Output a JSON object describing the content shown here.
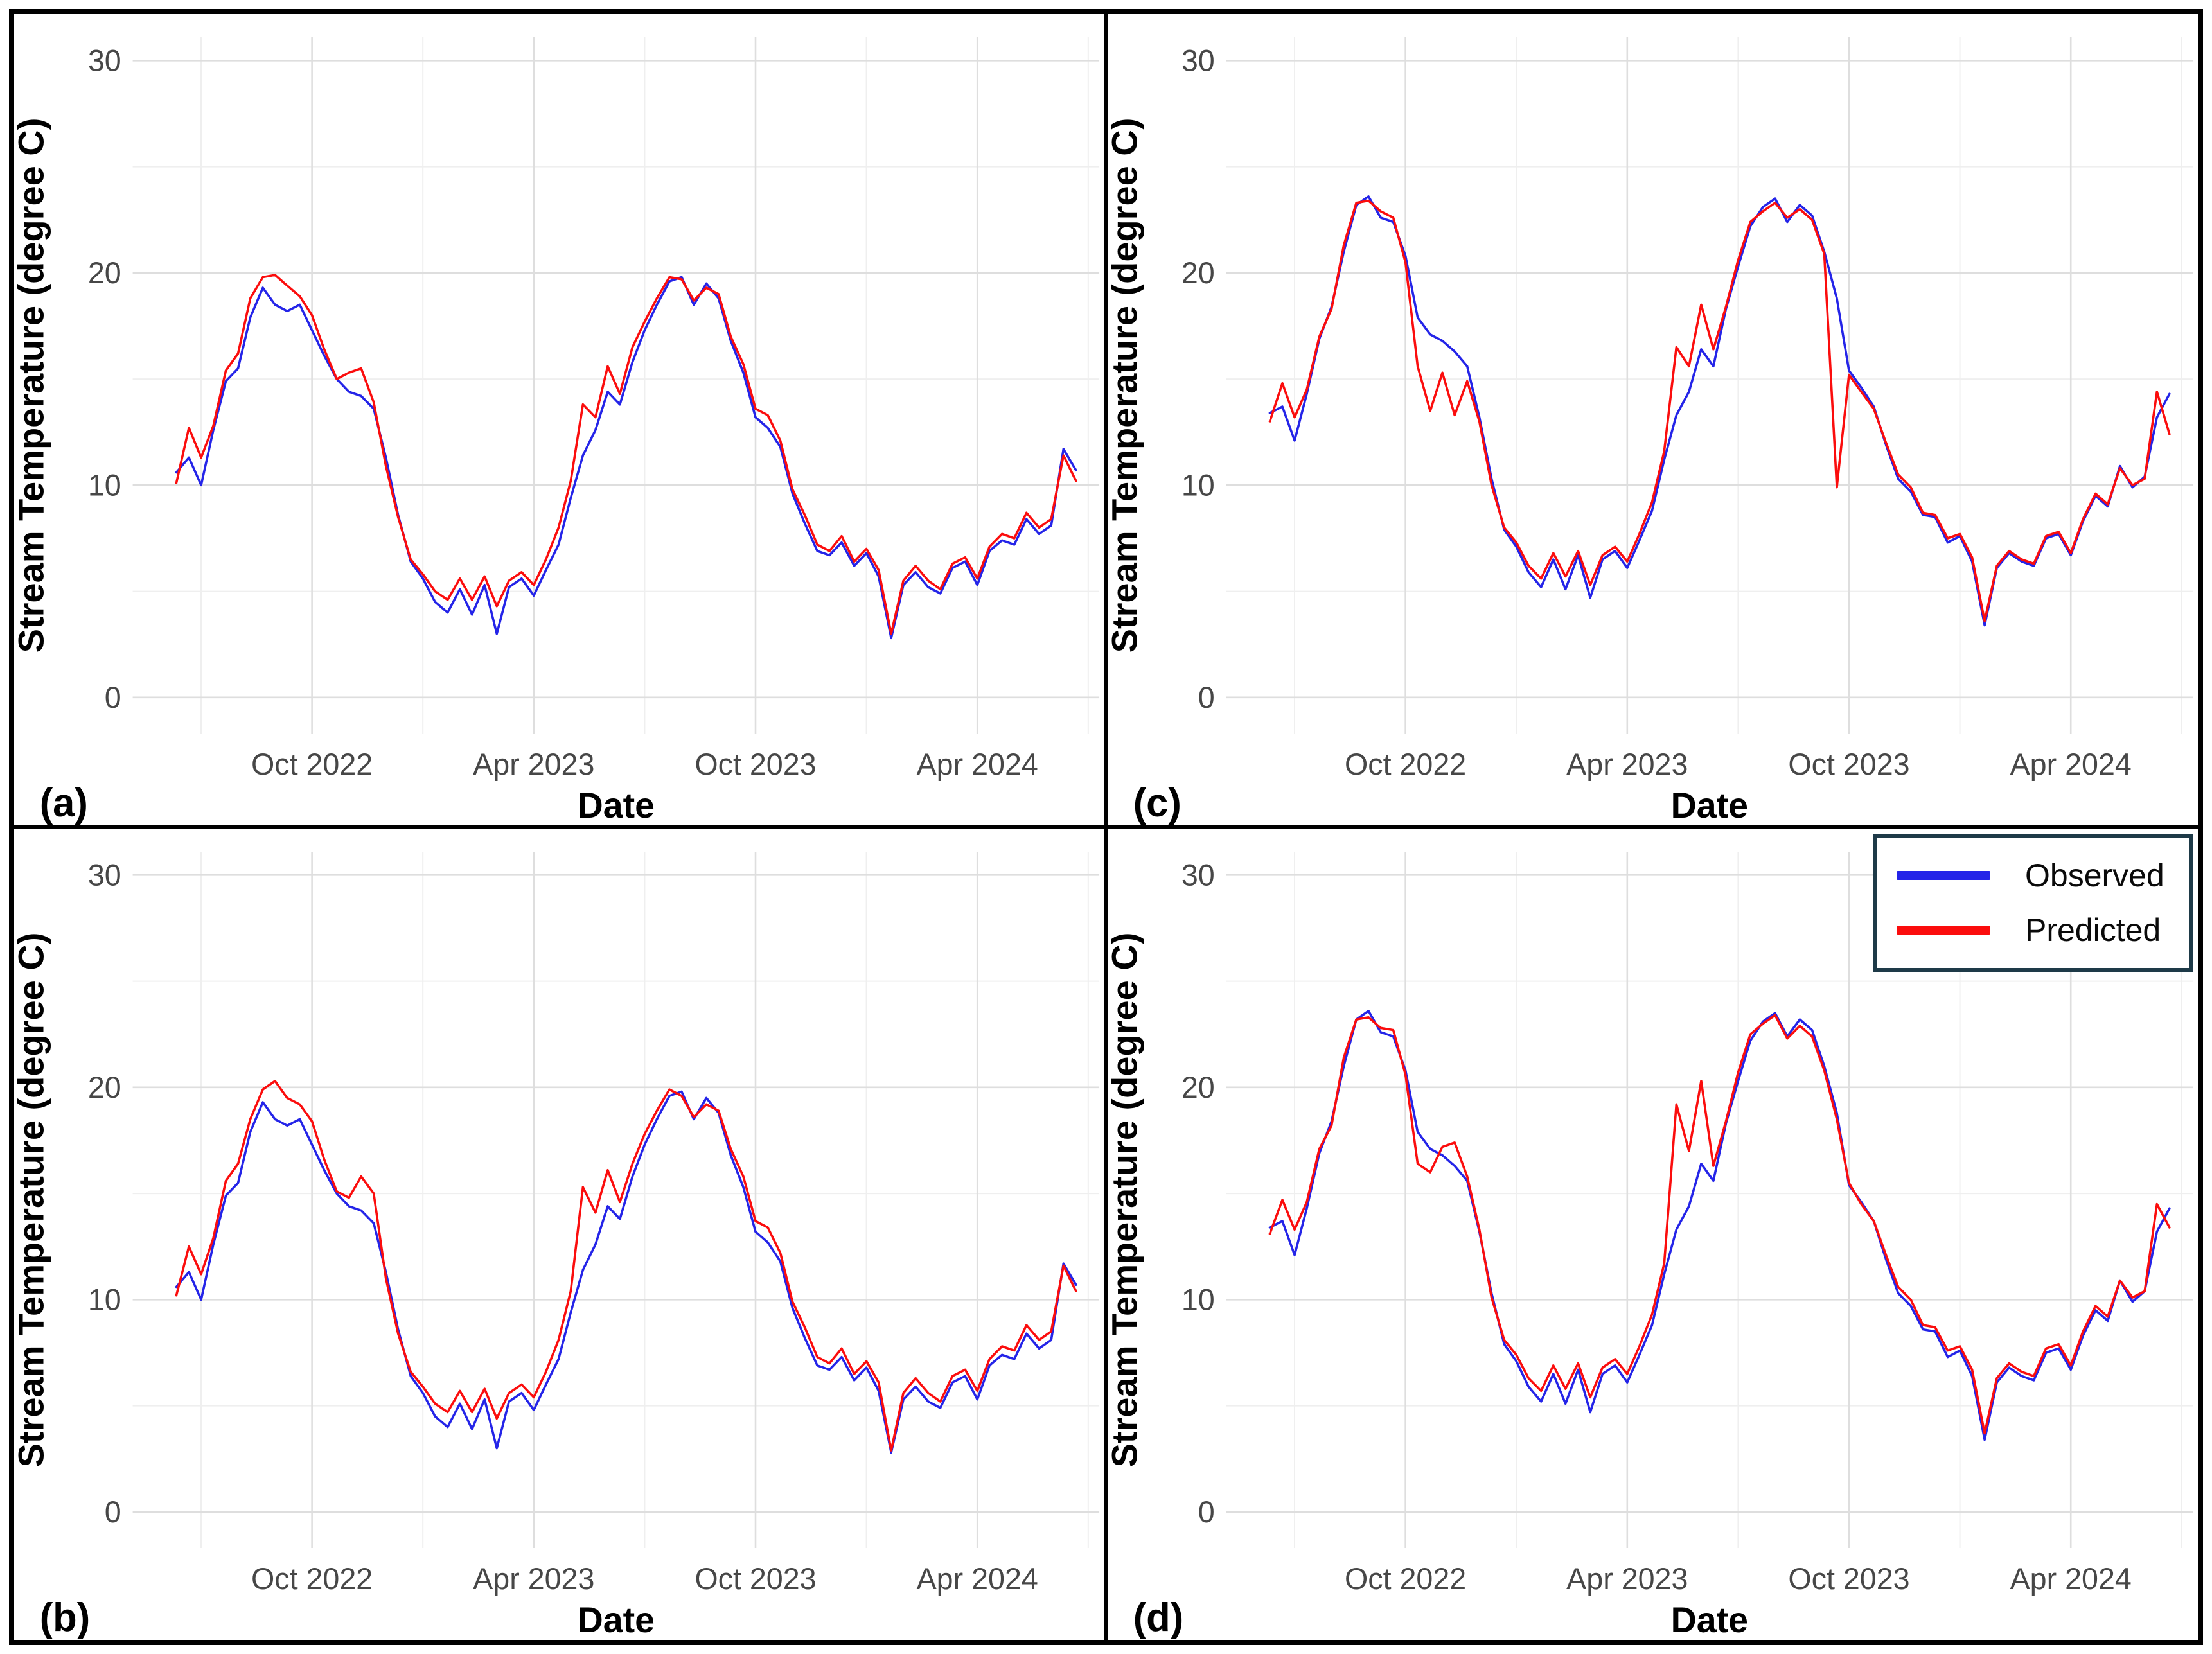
{
  "chart_data": {
    "type": "line",
    "description": "2x2 grid of observed vs predicted daily stream temperature time series, June 2022 - June 2024",
    "xlabel": "Date",
    "ylabel": "Stream Temperature (degree C)",
    "legend": [
      "Observed",
      "Predicted"
    ],
    "legend_position": "top-right of panel (d)",
    "grid": "on",
    "x_unit": "months since 2022-06-01",
    "xlim": [
      -0.85,
      25.3
    ],
    "ylim": [
      -1.7,
      31.1
    ],
    "y_ticks": [
      0,
      10,
      20,
      30
    ],
    "y_minor_gridlines": [
      5,
      15,
      25
    ],
    "x_tick_positions": [
      4,
      10,
      16,
      22
    ],
    "x_tick_labels": [
      "Oct 2022",
      "Apr 2023",
      "Oct 2023",
      "Apr 2024"
    ],
    "x_minor_gridlines": [
      1,
      7,
      13,
      19,
      25
    ],
    "colors": {
      "observed": "#2424e8",
      "predicted": "#fb0d0d",
      "grid_major": "#dedede",
      "grid_minor": "#efefef",
      "tick_label": "#474747",
      "axis_title": "#000000",
      "panel_letter": "#000000",
      "legend_border": "#1e3a48",
      "figure_border": "#000000"
    },
    "x": [
      0.33,
      0.67,
      1.0,
      1.33,
      1.67,
      2.0,
      2.33,
      2.67,
      3.0,
      3.33,
      3.67,
      4.0,
      4.33,
      4.67,
      5.0,
      5.33,
      5.67,
      6.0,
      6.33,
      6.67,
      7.0,
      7.33,
      7.67,
      8.0,
      8.33,
      8.67,
      9.0,
      9.33,
      9.67,
      10.0,
      10.33,
      10.67,
      11.0,
      11.33,
      11.67,
      12.0,
      12.33,
      12.67,
      13.0,
      13.33,
      13.67,
      14.0,
      14.33,
      14.67,
      15.0,
      15.33,
      15.67,
      16.0,
      16.33,
      16.67,
      17.0,
      17.33,
      17.67,
      18.0,
      18.33,
      18.67,
      19.0,
      19.33,
      19.67,
      20.0,
      20.33,
      20.67,
      21.0,
      21.33,
      21.67,
      22.0,
      22.33,
      22.67,
      23.0,
      23.33,
      23.67,
      24.0,
      24.33,
      24.67
    ],
    "panels": [
      {
        "label": "(a)",
        "observed": [
          10.6,
          11.3,
          10.0,
          12.6,
          14.9,
          15.5,
          17.9,
          19.3,
          18.5,
          18.2,
          18.5,
          17.3,
          16.1,
          15.0,
          14.4,
          14.2,
          13.6,
          11.3,
          8.6,
          6.4,
          5.6,
          4.5,
          4.0,
          5.1,
          3.9,
          5.3,
          3.0,
          5.2,
          5.6,
          4.8,
          6.0,
          7.2,
          9.4,
          11.4,
          12.6,
          14.4,
          13.8,
          15.8,
          17.3,
          18.5,
          19.6,
          19.8,
          18.5,
          19.5,
          18.8,
          16.8,
          15.3,
          13.2,
          12.7,
          11.8,
          9.6,
          8.2,
          6.9,
          6.7,
          7.3,
          6.2,
          6.8,
          5.7,
          2.8,
          5.3,
          5.9,
          5.2,
          4.9,
          6.1,
          6.4,
          5.3,
          6.9,
          7.4,
          7.2,
          8.4,
          7.7,
          8.1,
          11.7,
          10.7
        ],
        "predicted": [
          10.1,
          12.7,
          11.3,
          12.8,
          15.4,
          16.2,
          18.8,
          19.8,
          19.9,
          19.4,
          18.9,
          18.0,
          16.4,
          15.0,
          15.3,
          15.5,
          13.9,
          10.9,
          8.5,
          6.5,
          5.8,
          5.0,
          4.6,
          5.6,
          4.6,
          5.7,
          4.3,
          5.5,
          5.9,
          5.3,
          6.5,
          8.0,
          10.2,
          13.8,
          13.2,
          15.6,
          14.3,
          16.5,
          17.7,
          18.8,
          19.8,
          19.7,
          18.7,
          19.3,
          19.0,
          17.0,
          15.7,
          13.6,
          13.3,
          12.1,
          9.8,
          8.6,
          7.2,
          6.9,
          7.6,
          6.4,
          7.0,
          6.0,
          3.0,
          5.5,
          6.2,
          5.5,
          5.1,
          6.3,
          6.6,
          5.6,
          7.1,
          7.7,
          7.5,
          8.7,
          8.0,
          8.4,
          11.4,
          10.2
        ]
      },
      {
        "label": "(c)",
        "observed": [
          13.4,
          13.7,
          12.1,
          14.3,
          16.9,
          18.4,
          21.0,
          23.2,
          23.6,
          22.6,
          22.4,
          20.8,
          17.9,
          17.1,
          16.8,
          16.3,
          15.6,
          13.2,
          10.3,
          7.9,
          7.1,
          5.9,
          5.2,
          6.5,
          5.1,
          6.7,
          4.7,
          6.5,
          6.9,
          6.1,
          7.4,
          8.8,
          11.2,
          13.3,
          14.4,
          16.4,
          15.6,
          18.3,
          20.3,
          22.2,
          23.1,
          23.5,
          22.4,
          23.2,
          22.7,
          21.0,
          18.8,
          15.4,
          14.6,
          13.7,
          11.9,
          10.3,
          9.7,
          8.6,
          8.5,
          7.3,
          7.6,
          6.4,
          3.4,
          6.1,
          6.8,
          6.4,
          6.2,
          7.5,
          7.7,
          6.7,
          8.3,
          9.5,
          9.0,
          10.9,
          9.9,
          10.4,
          13.2,
          14.3
        ],
        "predicted": [
          13.0,
          14.8,
          13.2,
          14.5,
          17.0,
          18.3,
          21.3,
          23.3,
          23.4,
          22.9,
          22.6,
          20.5,
          15.6,
          13.5,
          15.3,
          13.3,
          14.9,
          13.0,
          10.0,
          8.0,
          7.3,
          6.2,
          5.6,
          6.8,
          5.7,
          6.9,
          5.3,
          6.7,
          7.1,
          6.4,
          7.7,
          9.2,
          11.6,
          16.5,
          15.6,
          18.5,
          16.4,
          18.4,
          20.6,
          22.4,
          22.9,
          23.3,
          22.6,
          23.0,
          22.5,
          20.9,
          9.9,
          15.2,
          14.4,
          13.6,
          12.0,
          10.5,
          9.9,
          8.7,
          8.6,
          7.5,
          7.7,
          6.6,
          3.6,
          6.2,
          6.9,
          6.5,
          6.3,
          7.6,
          7.8,
          6.8,
          8.4,
          9.6,
          9.1,
          10.8,
          10.0,
          10.3,
          14.4,
          12.4
        ]
      },
      {
        "label": "(b)",
        "observed": [
          10.6,
          11.3,
          10.0,
          12.6,
          14.9,
          15.5,
          17.9,
          19.3,
          18.5,
          18.2,
          18.5,
          17.3,
          16.1,
          15.0,
          14.4,
          14.2,
          13.6,
          11.3,
          8.6,
          6.4,
          5.6,
          4.5,
          4.0,
          5.1,
          3.9,
          5.3,
          3.0,
          5.2,
          5.6,
          4.8,
          6.0,
          7.2,
          9.4,
          11.4,
          12.6,
          14.4,
          13.8,
          15.8,
          17.3,
          18.5,
          19.6,
          19.8,
          18.5,
          19.5,
          18.8,
          16.8,
          15.3,
          13.2,
          12.7,
          11.8,
          9.6,
          8.2,
          6.9,
          6.7,
          7.3,
          6.2,
          6.8,
          5.7,
          2.8,
          5.3,
          5.9,
          5.2,
          4.9,
          6.1,
          6.4,
          5.3,
          6.9,
          7.4,
          7.2,
          8.4,
          7.7,
          8.1,
          11.7,
          10.7
        ],
        "predicted": [
          10.2,
          12.5,
          11.2,
          12.9,
          15.6,
          16.4,
          18.5,
          19.9,
          20.3,
          19.5,
          19.2,
          18.4,
          16.6,
          15.1,
          14.8,
          15.8,
          15.0,
          11.0,
          8.4,
          6.6,
          5.9,
          5.1,
          4.7,
          5.7,
          4.7,
          5.8,
          4.4,
          5.6,
          6.0,
          5.4,
          6.6,
          8.1,
          10.4,
          15.3,
          14.1,
          16.1,
          14.6,
          16.4,
          17.8,
          18.9,
          19.9,
          19.6,
          18.6,
          19.2,
          18.9,
          17.1,
          15.8,
          13.7,
          13.4,
          12.2,
          9.9,
          8.7,
          7.3,
          7.0,
          7.7,
          6.5,
          7.1,
          6.1,
          2.9,
          5.6,
          6.3,
          5.6,
          5.2,
          6.4,
          6.7,
          5.7,
          7.2,
          7.8,
          7.6,
          8.8,
          8.1,
          8.5,
          11.6,
          10.4
        ]
      },
      {
        "label": "(d)",
        "observed": [
          13.4,
          13.7,
          12.1,
          14.3,
          16.9,
          18.4,
          21.0,
          23.2,
          23.6,
          22.6,
          22.4,
          20.8,
          17.9,
          17.1,
          16.8,
          16.3,
          15.6,
          13.2,
          10.3,
          7.9,
          7.1,
          5.9,
          5.2,
          6.5,
          5.1,
          6.7,
          4.7,
          6.5,
          6.9,
          6.1,
          7.4,
          8.8,
          11.2,
          13.3,
          14.4,
          16.4,
          15.6,
          18.3,
          20.3,
          22.2,
          23.1,
          23.5,
          22.4,
          23.2,
          22.7,
          21.0,
          18.8,
          15.4,
          14.6,
          13.7,
          11.9,
          10.3,
          9.7,
          8.6,
          8.5,
          7.3,
          7.6,
          6.4,
          3.4,
          6.1,
          6.8,
          6.4,
          6.2,
          7.5,
          7.7,
          6.7,
          8.3,
          9.5,
          9.0,
          10.9,
          9.9,
          10.4,
          13.2,
          14.3
        ],
        "predicted": [
          13.1,
          14.7,
          13.3,
          14.6,
          17.1,
          18.2,
          21.4,
          23.2,
          23.3,
          22.8,
          22.7,
          20.6,
          16.4,
          16.0,
          17.2,
          17.4,
          15.8,
          13.3,
          10.1,
          8.1,
          7.4,
          6.3,
          5.7,
          6.9,
          5.8,
          7.0,
          5.4,
          6.8,
          7.2,
          6.5,
          7.8,
          9.3,
          11.7,
          19.2,
          17.0,
          20.3,
          16.3,
          18.4,
          20.7,
          22.5,
          23.0,
          23.4,
          22.3,
          22.9,
          22.4,
          20.8,
          18.5,
          15.5,
          14.5,
          13.7,
          12.1,
          10.6,
          10.0,
          8.8,
          8.7,
          7.6,
          7.8,
          6.7,
          3.7,
          6.3,
          7.0,
          6.6,
          6.4,
          7.7,
          7.9,
          6.9,
          8.5,
          9.7,
          9.2,
          10.9,
          10.1,
          10.4,
          14.5,
          13.4
        ]
      }
    ]
  }
}
